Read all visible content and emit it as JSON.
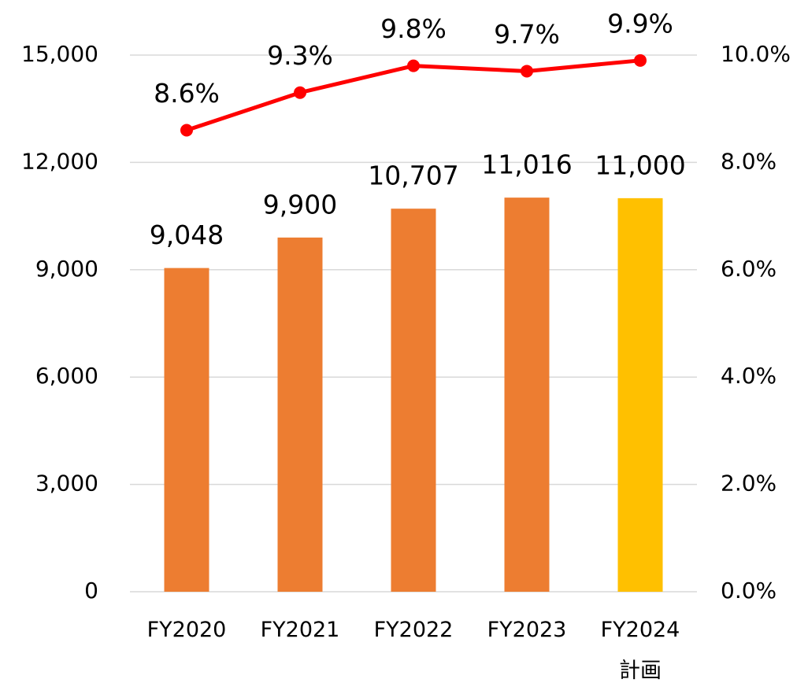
{
  "chart_data": {
    "type": "bar_line",
    "categories": [
      "FY2020",
      "FY2021",
      "FY2022",
      "FY2023",
      "FY2024\n計画"
    ],
    "series": [
      {
        "type": "bar",
        "colors": [
          "#ED7D31",
          "#ED7D31",
          "#ED7D31",
          "#ED7D31",
          "#FFC000"
        ],
        "values": [
          9048,
          9900,
          10707,
          11016,
          11000
        ],
        "value_labels": [
          "9,048",
          "9,900",
          "10,707",
          "11,016",
          "11,000"
        ]
      },
      {
        "type": "line",
        "axis": "y2",
        "color": "#FF0000",
        "values": [
          8.6,
          9.3,
          9.8,
          9.7,
          9.9
        ],
        "value_labels": [
          "8.6%",
          "9.3%",
          "9.8%",
          "9.7%",
          "9.9%"
        ]
      }
    ],
    "ylim": [
      0,
      15000
    ],
    "yticks": [
      0,
      {
        "value": 3000,
        "label": "3,000"
      },
      {
        "value": 6000,
        "label": "6,000"
      },
      {
        "value": 9000,
        "label": "9,000"
      },
      {
        "value": 12000,
        "label": "12,000"
      },
      {
        "value": 15000,
        "label": "15,000"
      }
    ],
    "y2lim": [
      0,
      10
    ],
    "y2ticks": [
      {
        "value": 0,
        "label": "0.0%"
      },
      {
        "value": 2,
        "label": "2.0%"
      },
      {
        "value": 4,
        "label": "4.0%"
      },
      {
        "value": 6,
        "label": "6.0%"
      },
      {
        "value": 8,
        "label": "8.0%"
      },
      {
        "value": 10,
        "label": "10.0%"
      }
    ],
    "grid": true
  }
}
